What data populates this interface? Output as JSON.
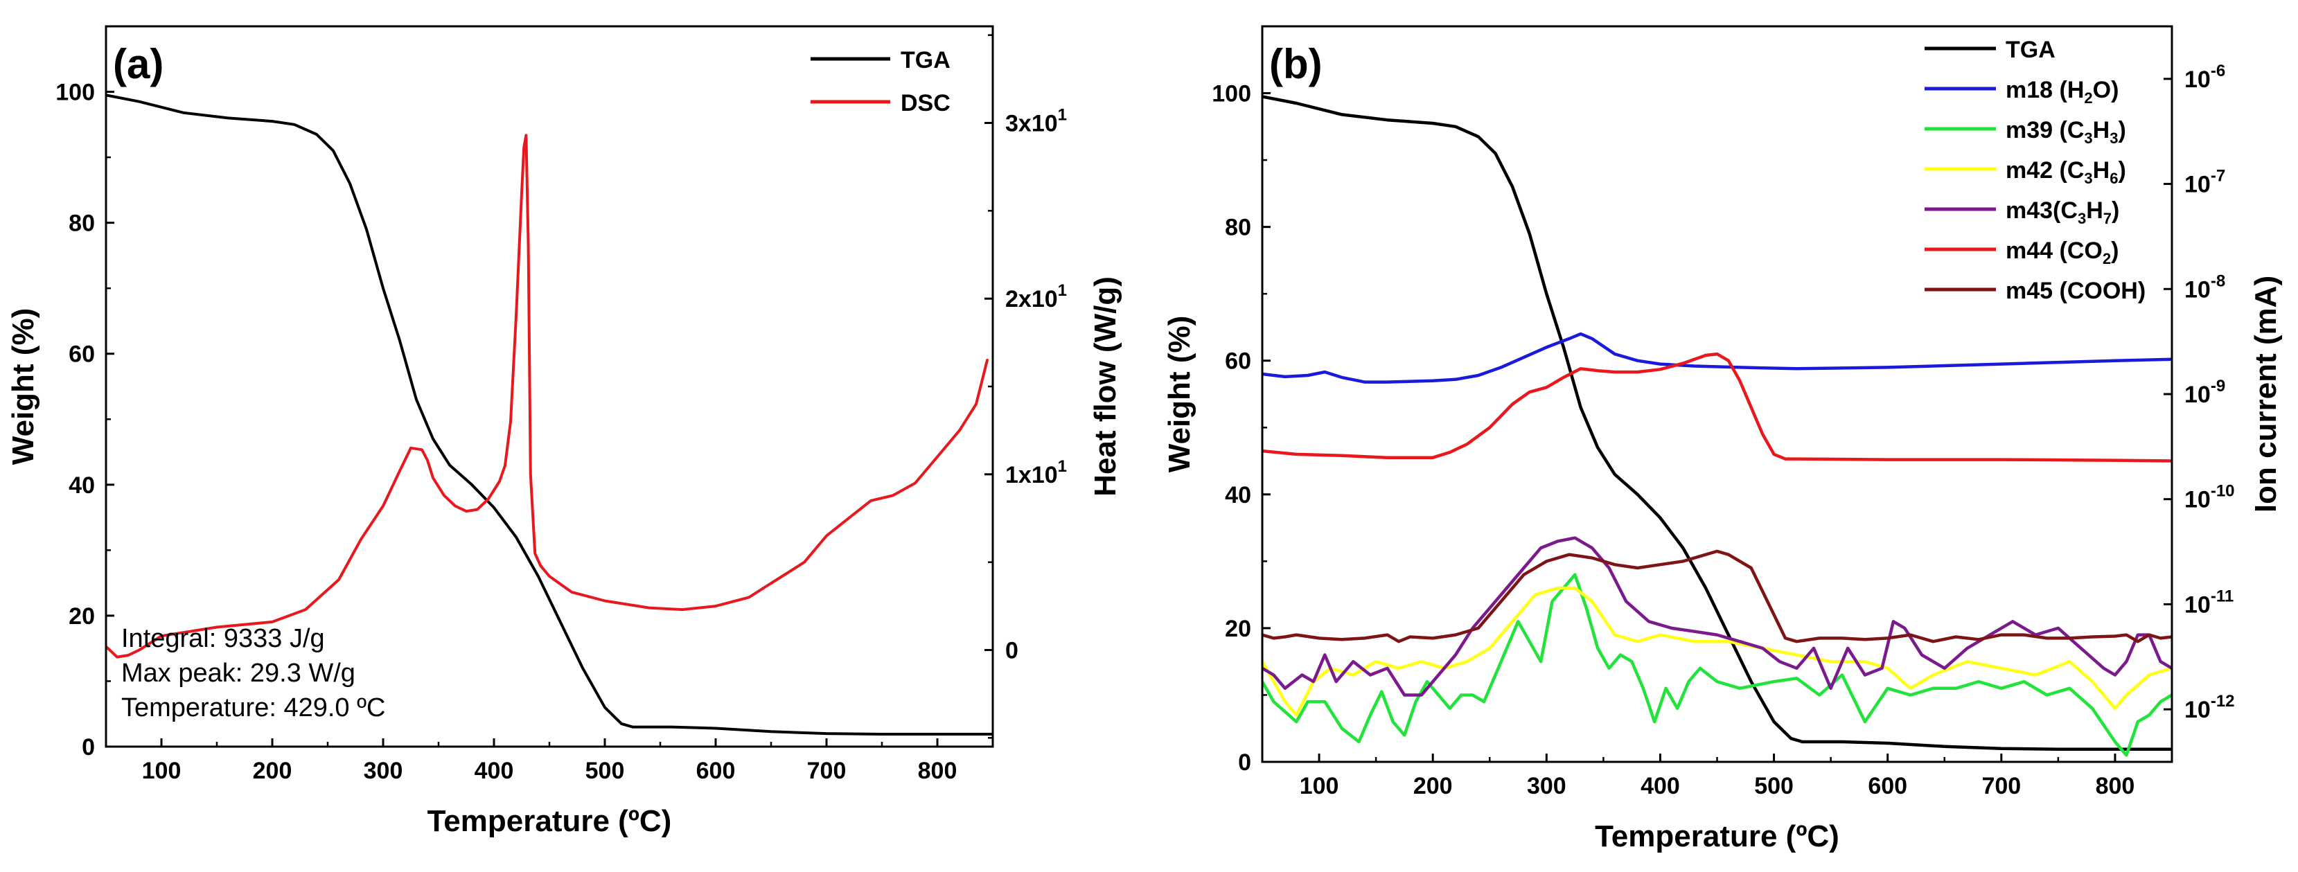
{
  "chart_data": [
    {
      "panel": "(a)",
      "type": "line",
      "xlabel": "Temperature (ºC)",
      "ylabel": "Weight (%)",
      "y2label": "Heat flow (W/g)",
      "xlim": [
        50,
        850
      ],
      "ylim": [
        0,
        110
      ],
      "y2lim": [
        -5.5,
        35.5
      ],
      "xticks": [
        100,
        200,
        300,
        400,
        500,
        600,
        700,
        800
      ],
      "yticks": [
        0,
        20,
        40,
        60,
        80,
        100
      ],
      "y2ticks": [
        {
          "value": 0,
          "label": "0"
        },
        {
          "value": 10,
          "label": "1x10",
          "exp": "1"
        },
        {
          "value": 20,
          "label": "2x10",
          "exp": "1"
        },
        {
          "value": 30,
          "label": "3x10",
          "exp": "1"
        }
      ],
      "legend_position": "top-right",
      "series": [
        {
          "name": "TGA",
          "axis": "left",
          "color": "#000000",
          "x": [
            50,
            80,
            120,
            160,
            200,
            220,
            240,
            255,
            270,
            285,
            300,
            315,
            330,
            345,
            360,
            380,
            400,
            420,
            440,
            460,
            480,
            500,
            515,
            525,
            540,
            560,
            600,
            650,
            700,
            750,
            800,
            850
          ],
          "y": [
            99.5,
            98.5,
            96.8,
            96,
            95.5,
            95,
            93.5,
            91,
            86,
            79,
            70,
            62,
            53,
            47,
            43,
            40,
            36.5,
            32,
            26,
            19,
            12,
            6,
            3.5,
            3,
            3,
            3,
            2.8,
            2.3,
            2,
            1.9,
            1.9,
            1.9
          ]
        },
        {
          "name": "DSC",
          "axis": "right",
          "color": "#e8191e",
          "x": [
            50,
            60,
            70,
            80,
            100,
            150,
            200,
            230,
            260,
            280,
            300,
            315,
            325,
            335,
            340,
            345,
            355,
            365,
            375,
            385,
            395,
            405,
            410,
            415,
            420,
            425,
            427,
            429,
            431,
            433,
            437,
            442,
            450,
            470,
            500,
            540,
            570,
            600,
            630,
            650,
            660,
            680,
            700,
            720,
            740,
            760,
            780,
            800,
            820,
            835,
            845
          ],
          "y": [
            0.2,
            -0.4,
            -0.3,
            0,
            0.8,
            1.3,
            1.6,
            2.3,
            4,
            6.3,
            8.2,
            10.2,
            11.5,
            11.4,
            10.8,
            9.8,
            8.8,
            8.2,
            7.9,
            8,
            8.6,
            9.6,
            10.5,
            13,
            19,
            26,
            28.6,
            29.3,
            23,
            10,
            5.5,
            4.8,
            4.2,
            3.3,
            2.8,
            2.4,
            2.3,
            2.5,
            3,
            3.8,
            4.2,
            5,
            6.5,
            7.5,
            8.5,
            8.8,
            9.5,
            11,
            12.5,
            14,
            16.5
          ]
        }
      ],
      "annotations": [
        "Integral: 9333 J/g",
        "Max peak: 29.3 W/g",
        "Temperature: 429.0 ºC"
      ]
    },
    {
      "panel": "(b)",
      "type": "line",
      "xlabel": "Temperature (ºC)",
      "ylabel": "Weight (%)",
      "y2label": "Ion current (mA)",
      "y2scale": "log",
      "xlim": [
        50,
        850
      ],
      "ylim": [
        0,
        110
      ],
      "y2lim_log10": [
        -12.5,
        -5.5
      ],
      "xticks": [
        100,
        200,
        300,
        400,
        500,
        600,
        700,
        800
      ],
      "yticks": [
        0,
        20,
        40,
        60,
        80,
        100
      ],
      "y2ticks": [
        {
          "exp10": -6,
          "label": "10",
          "exp": "-6"
        },
        {
          "exp10": -7,
          "label": "10",
          "exp": "-7"
        },
        {
          "exp10": -8,
          "label": "10",
          "exp": "-8"
        },
        {
          "exp10": -9,
          "label": "10",
          "exp": "-9"
        },
        {
          "exp10": -10,
          "label": "10",
          "exp": "-10"
        },
        {
          "exp10": -11,
          "label": "10",
          "exp": "-11"
        },
        {
          "exp10": -12,
          "label": "10",
          "exp": "-12"
        }
      ],
      "legend_position": "top-right",
      "series": [
        {
          "name": "TGA",
          "label_parts": [
            {
              "t": "TGA"
            }
          ],
          "axis": "left",
          "color": "#000000",
          "x": [
            50,
            80,
            120,
            160,
            200,
            220,
            240,
            255,
            270,
            285,
            300,
            315,
            330,
            345,
            360,
            380,
            400,
            420,
            440,
            460,
            480,
            500,
            515,
            525,
            540,
            560,
            600,
            650,
            700,
            750,
            800,
            850
          ],
          "y": [
            99.5,
            98.5,
            96.8,
            96,
            95.5,
            95,
            93.5,
            91,
            86,
            79,
            70,
            62,
            53,
            47,
            43,
            40,
            36.5,
            32,
            26,
            19,
            12,
            6,
            3.5,
            3,
            3,
            3,
            2.8,
            2.3,
            2,
            1.9,
            1.9,
            1.9
          ]
        },
        {
          "name": "m18 (H2O)",
          "label_parts": [
            {
              "t": "m18 (H"
            },
            {
              "t": "2",
              "sub": true
            },
            {
              "t": "O)"
            }
          ],
          "axis": "left",
          "color": "#1a1adb",
          "x": [
            50,
            70,
            90,
            105,
            120,
            140,
            160,
            200,
            220,
            240,
            260,
            280,
            300,
            320,
            330,
            340,
            360,
            380,
            400,
            430,
            470,
            520,
            600,
            700,
            800,
            850
          ],
          "y": [
            58,
            57.6,
            57.8,
            58.3,
            57.5,
            56.8,
            56.8,
            57,
            57.2,
            57.8,
            59,
            60.5,
            62,
            63.3,
            64,
            63.3,
            61,
            60,
            59.5,
            59.2,
            59,
            58.8,
            59,
            59.5,
            60,
            60.2
          ]
        },
        {
          "name": "m39 (C3H3)",
          "label_parts": [
            {
              "t": "m39 (C"
            },
            {
              "t": "3",
              "sub": true
            },
            {
              "t": "H"
            },
            {
              "t": "3",
              "sub": true
            },
            {
              "t": ")"
            }
          ],
          "axis": "left",
          "color": "#22e33a",
          "x": [
            50,
            60,
            70,
            80,
            90,
            105,
            120,
            135,
            145,
            155,
            165,
            175,
            185,
            195,
            205,
            215,
            225,
            235,
            245,
            255,
            265,
            275,
            285,
            295,
            305,
            315,
            325,
            335,
            345,
            355,
            365,
            375,
            385,
            395,
            405,
            415,
            425,
            435,
            450,
            470,
            500,
            520,
            540,
            560,
            580,
            600,
            620,
            640,
            660,
            680,
            700,
            720,
            740,
            760,
            780,
            800,
            810,
            820,
            830,
            840,
            850
          ],
          "y": [
            12,
            9,
            7.5,
            6,
            9,
            9,
            5,
            3,
            7,
            10.5,
            6,
            4,
            9,
            12,
            10,
            8,
            10,
            10,
            9,
            13,
            17,
            21,
            18,
            15,
            24,
            26,
            28,
            23,
            17,
            14,
            16,
            15,
            11,
            6,
            11,
            8,
            12,
            14,
            12,
            11,
            12,
            12.5,
            10,
            13,
            6,
            11,
            10,
            11,
            11,
            12,
            11,
            12,
            10,
            11,
            8,
            3,
            1,
            6,
            7,
            9,
            10
          ]
        },
        {
          "name": "m42 (C3H6)",
          "label_parts": [
            {
              "t": "m42 (C"
            },
            {
              "t": "3",
              "sub": true
            },
            {
              "t": "H"
            },
            {
              "t": "6",
              "sub": true
            },
            {
              "t": ")"
            }
          ],
          "axis": "left",
          "color": "#ffff1a",
          "x": [
            50,
            60,
            70,
            80,
            95,
            110,
            130,
            150,
            170,
            190,
            210,
            230,
            250,
            270,
            290,
            310,
            325,
            340,
            360,
            380,
            400,
            430,
            460,
            490,
            520,
            550,
            580,
            600,
            620,
            640,
            670,
            700,
            730,
            760,
            780,
            800,
            810,
            830,
            850
          ],
          "y": [
            15,
            12,
            9,
            7,
            12,
            14,
            13,
            15,
            14,
            15,
            14,
            15,
            17,
            21,
            25,
            26,
            26,
            24,
            19,
            18,
            19,
            18,
            18,
            17,
            16,
            15,
            15,
            14,
            11,
            13,
            15,
            14,
            13,
            15,
            12,
            8,
            10,
            13,
            14
          ]
        },
        {
          "name": "m43(C3H7)",
          "label_parts": [
            {
              "t": "m43(C"
            },
            {
              "t": "3",
              "sub": true
            },
            {
              "t": "H"
            },
            {
              "t": "7",
              "sub": true
            },
            {
              "t": ")"
            }
          ],
          "axis": "left",
          "color": "#7b1a8c",
          "x": [
            50,
            60,
            70,
            85,
            95,
            105,
            115,
            130,
            145,
            160,
            175,
            190,
            205,
            220,
            235,
            250,
            265,
            280,
            295,
            310,
            325,
            340,
            355,
            370,
            390,
            410,
            430,
            450,
            470,
            490,
            505,
            520,
            535,
            550,
            565,
            580,
            595,
            605,
            615,
            630,
            650,
            670,
            690,
            710,
            730,
            750,
            770,
            790,
            800,
            810,
            820,
            830,
            840,
            850
          ],
          "y": [
            14,
            13,
            11,
            13,
            12,
            16,
            12,
            15,
            13,
            14,
            10,
            10,
            13,
            16,
            20,
            23,
            26,
            29,
            32,
            33,
            33.5,
            32,
            29,
            24,
            21,
            20,
            19.5,
            19,
            18,
            17,
            15,
            14,
            17,
            11,
            17,
            13,
            14,
            21,
            20,
            16,
            14,
            17,
            19,
            21,
            19,
            20,
            17,
            14,
            13,
            15,
            19,
            19,
            15,
            14
          ]
        },
        {
          "name": "m44 (CO2)",
          "label_parts": [
            {
              "t": "m44 (CO"
            },
            {
              "t": "2",
              "sub": true
            },
            {
              "t": ")"
            }
          ],
          "axis": "left",
          "color": "#e8191e",
          "x": [
            50,
            80,
            120,
            160,
            200,
            215,
            230,
            250,
            270,
            285,
            300,
            315,
            330,
            345,
            360,
            380,
            400,
            420,
            440,
            450,
            460,
            470,
            480,
            490,
            500,
            510,
            520,
            600,
            700,
            800,
            850
          ],
          "y": [
            46.5,
            46,
            45.8,
            45.5,
            45.5,
            46.3,
            47.5,
            50,
            53.5,
            55.3,
            56,
            57.5,
            58.8,
            58.5,
            58.3,
            58.3,
            58.7,
            59.6,
            60.8,
            61,
            60,
            57,
            53,
            49,
            46,
            45.3,
            45.3,
            45.2,
            45.2,
            45.1,
            45
          ]
        },
        {
          "name": "m45 (COOH)",
          "label_parts": [
            {
              "t": "m45 (COOH)"
            }
          ],
          "axis": "left",
          "color": "#7f1414",
          "x": [
            50,
            60,
            70,
            80,
            100,
            120,
            140,
            160,
            170,
            180,
            200,
            220,
            240,
            260,
            280,
            300,
            320,
            340,
            360,
            380,
            400,
            420,
            440,
            450,
            460,
            480,
            500,
            510,
            520,
            540,
            560,
            580,
            600,
            620,
            640,
            660,
            680,
            700,
            720,
            740,
            760,
            780,
            800,
            810,
            820,
            830,
            840,
            850
          ],
          "y": [
            19,
            18.5,
            18.7,
            19,
            18.5,
            18.3,
            18.5,
            19,
            18,
            18.7,
            18.5,
            19,
            20,
            24,
            28,
            30,
            31,
            30.5,
            29.5,
            29,
            29.5,
            30,
            31,
            31.5,
            31,
            29,
            22,
            18.5,
            18,
            18.5,
            18.5,
            18.3,
            18.5,
            19,
            18,
            18.7,
            18.3,
            19,
            19,
            18.5,
            18.5,
            18.7,
            18.8,
            19,
            18,
            19,
            18.5,
            18.7
          ]
        }
      ]
    }
  ]
}
